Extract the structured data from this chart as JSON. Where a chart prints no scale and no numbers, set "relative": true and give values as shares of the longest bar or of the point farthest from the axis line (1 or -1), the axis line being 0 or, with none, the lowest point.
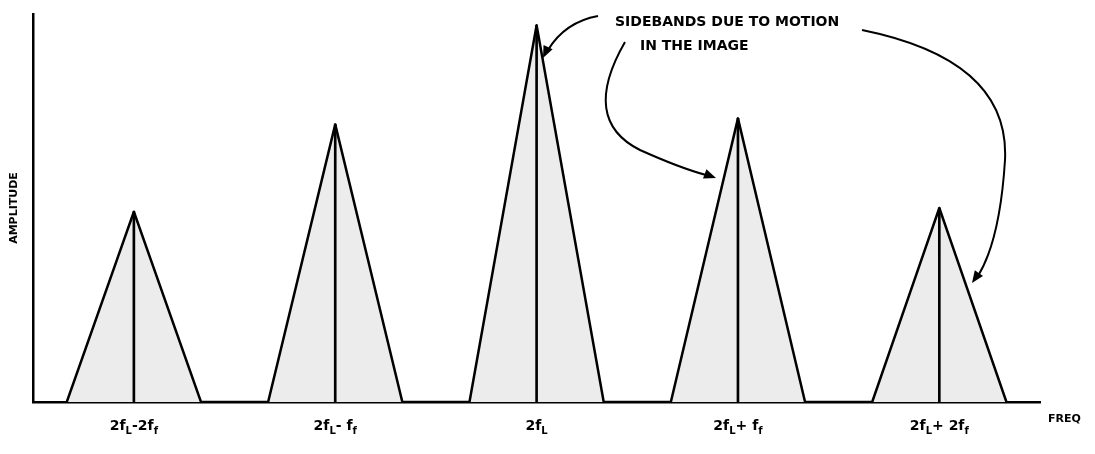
{
  "chart_data": {
    "type": "area",
    "relative": true,
    "categories": [
      null,
      "2f$_{L}$-2f$_{f}$",
      null,
      null,
      "2f$_{L}$- f$_{f}$",
      null,
      null,
      "2f$_{L}$",
      null,
      null,
      "2f$_{L}$+ f$_{f}$",
      null,
      null,
      "2f$_{L}$+ 2f$_{f}$",
      null
    ],
    "series": [
      {
        "color": "#000000",
        "values": [
          0,
          0.505,
          0,
          0,
          0.737,
          0,
          0,
          1,
          0,
          0,
          0.753,
          0,
          0,
          0.515,
          0
        ]
      },
      {
        "type": "bar",
        "color": "#000000",
        "values": [
          null,
          0.505,
          null,
          null,
          0.737,
          null,
          null,
          1,
          null,
          null,
          0.753,
          null,
          null,
          0.515,
          null
        ]
      }
    ],
    "xlabel": "FREQ",
    "ylabel": "AMPLITUDE",
    "annotations": [
      "SIDEBANDS DUE TO MOTION\nIN THE IMAGE"
    ]
  }
}
